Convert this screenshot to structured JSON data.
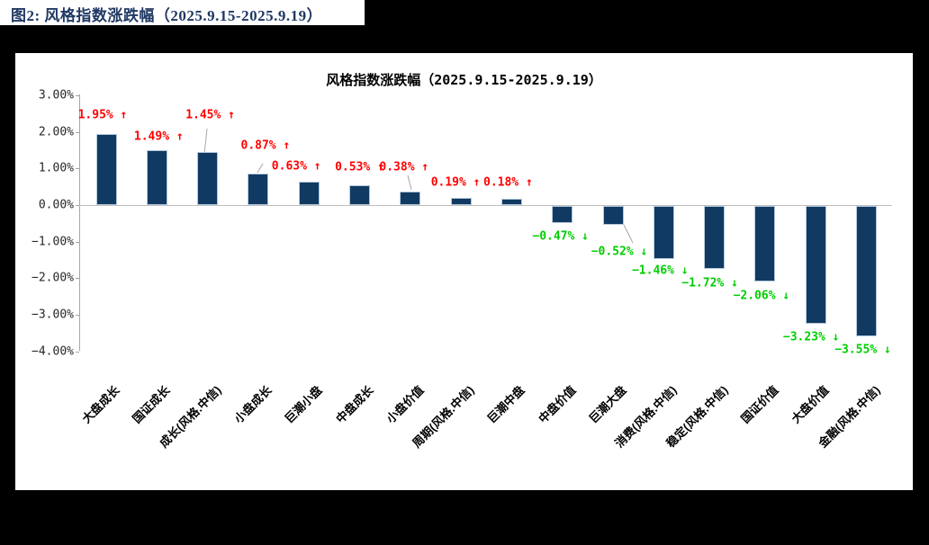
{
  "figure": {
    "caption": "图2:  风格指数涨跌幅（2025.9.15-2025.9.19）"
  },
  "chart_data": {
    "type": "bar",
    "title": "风格指数涨跌幅（2025.9.15-2025.9.19）",
    "categories": [
      "大盘成长",
      "国证成长",
      "成长(风格.中信)",
      "小盘成长",
      "巨潮小盘",
      "中盘成长",
      "小盘价值",
      "周期(风格.中信)",
      "巨潮中盘",
      "中盘价值",
      "巨潮大盘",
      "消费(风格.中信)",
      "稳定(风格.中信)",
      "国证价值",
      "大盘价值",
      "金融(风格.中信)"
    ],
    "values": [
      1.95,
      1.49,
      1.45,
      0.87,
      0.63,
      0.53,
      0.38,
      0.19,
      0.18,
      -0.47,
      -0.52,
      -1.46,
      -1.72,
      -2.06,
      -3.23,
      -3.55
    ],
    "point_labels": [
      "1.95% ↑",
      "1.49% ↑",
      "1.45% ↑",
      "0.87% ↑",
      "0.63% ↑",
      "0.53% ↑",
      "0.38% ↑",
      "0.19% ↑",
      "0.18% ↑",
      "−0.47% ↓",
      "−0.52% ↓",
      "−1.46% ↓",
      "−1.72% ↓",
      "−2.06% ↓",
      "−3.23% ↓",
      "−3.55% ↓"
    ],
    "yticks": [
      {
        "label": "3.00%",
        "value": 3
      },
      {
        "label": "2.00%",
        "value": 2
      },
      {
        "label": "1.00%",
        "value": 1
      },
      {
        "label": "0.00%",
        "value": 0
      },
      {
        "label": "−1.00%",
        "value": -1
      },
      {
        "label": "−2.00%",
        "value": -2
      },
      {
        "label": "−3.00%",
        "value": -3
      },
      {
        "label": "−4.00%",
        "value": -4
      }
    ],
    "ylim": [
      -4,
      3
    ],
    "grid": false,
    "legend": false,
    "colors": {
      "bar": "#103A62",
      "bar_border": "#B5C8DC",
      "up_label": "#FF0000",
      "down_label": "#00CE00",
      "axis": "#A6A6A6",
      "zero_line": "#BFBFBF",
      "caption_text": "#1F3864"
    }
  }
}
